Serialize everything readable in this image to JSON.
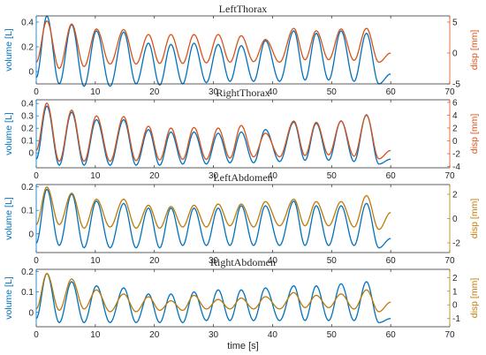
{
  "colors": {
    "left_series": "#0072bd",
    "right_series": "#d95319",
    "right_axis_abdomen": "#bd7b08",
    "text": "#262626",
    "axes": "#262626"
  },
  "chart_data": [
    {
      "type": "line",
      "title": "LeftThorax",
      "xlabel": "",
      "ylabel_left": "volume [L]",
      "ylabel_right": "disp [mm]",
      "xlim": [
        0,
        70
      ],
      "xticks": [
        0,
        10,
        20,
        30,
        40,
        50,
        60,
        70
      ],
      "ylim_left": [
        -0.1,
        0.45
      ],
      "yticks_left": [
        0,
        0.2,
        0.4
      ],
      "ytick_labels_left": [
        "0",
        "0.2",
        "0.4"
      ],
      "ylim_right": [
        -5,
        6
      ],
      "yticks_right": [
        -5,
        0,
        5
      ],
      "ytick_labels_right": [
        "-5",
        "0",
        "5"
      ],
      "peak_times": [
        1.8,
        6,
        10.2,
        14.8,
        19,
        22.8,
        26.7,
        30.8,
        34.7,
        38.8,
        43.6,
        47.4,
        51.6,
        55.9
      ],
      "series": [
        {
          "axis": "left",
          "color": "#0072bd",
          "x": [
            0,
            1.8,
            3.9,
            6,
            8.1,
            10.2,
            12.5,
            14.8,
            16.9,
            19,
            20.9,
            22.8,
            24.8,
            26.7,
            28.8,
            30.8,
            32.8,
            34.7,
            36.8,
            38.8,
            41.2,
            43.6,
            45.5,
            47.4,
            49.5,
            51.6,
            53.8,
            55.9,
            58,
            60
          ],
          "values": [
            -0.05,
            0.45,
            -0.1,
            0.38,
            -0.12,
            0.33,
            -0.12,
            0.32,
            -0.1,
            0.23,
            -0.11,
            0.22,
            -0.1,
            0.23,
            -0.09,
            0.22,
            -0.08,
            0.21,
            -0.08,
            0.25,
            -0.08,
            0.33,
            -0.07,
            0.31,
            -0.07,
            0.33,
            -0.08,
            0.31,
            -0.1,
            -0.02
          ]
        },
        {
          "axis": "right",
          "color": "#d95319",
          "x": [
            0,
            1.8,
            3.9,
            6,
            8.1,
            10.2,
            12.5,
            14.8,
            16.9,
            19,
            20.9,
            22.8,
            24.8,
            26.7,
            28.8,
            30.8,
            32.8,
            34.7,
            36.8,
            38.8,
            41.2,
            43.6,
            45.5,
            47.4,
            49.5,
            51.6,
            53.8,
            55.9,
            58,
            60
          ],
          "values": [
            -1.5,
            5.2,
            -2.5,
            4.7,
            -2.2,
            3.9,
            -1.8,
            3.8,
            -1.8,
            3.0,
            -1.7,
            3.0,
            -1.7,
            3.0,
            -1.6,
            3.0,
            -1.5,
            2.8,
            -1.4,
            2.2,
            -1.5,
            4.0,
            -1.1,
            3.6,
            -1.1,
            3.9,
            -1.2,
            4.0,
            -1.5,
            0
          ]
        }
      ]
    },
    {
      "type": "line",
      "title": "RightThorax",
      "xlabel": "",
      "ylabel_left": "volume [L]",
      "ylabel_right": "disp [mm]",
      "xlim": [
        0,
        70
      ],
      "xticks": [
        0,
        10,
        20,
        30,
        40,
        50,
        60,
        70
      ],
      "ylim_left": [
        -0.12,
        0.43
      ],
      "yticks_left": [
        0,
        0.1,
        0.2,
        0.3,
        0.4
      ],
      "ytick_labels_left": [
        "0",
        "0.1",
        "0.2",
        "0.3",
        "0.4"
      ],
      "ylim_right": [
        -4.2,
        6.4
      ],
      "yticks_right": [
        -4,
        -2,
        0,
        2,
        4,
        6
      ],
      "ytick_labels_right": [
        "-4",
        "-2",
        "0",
        "2",
        "4",
        "6"
      ],
      "peak_times": [
        1.8,
        6,
        10.2,
        14.8,
        19,
        22.8,
        26.7,
        30.8,
        34.7,
        38.8,
        43.6,
        47.4,
        51.6,
        55.9
      ],
      "series": [
        {
          "axis": "left",
          "color": "#0072bd",
          "x": [
            0,
            1.8,
            3.9,
            6,
            8.1,
            10.2,
            12.5,
            14.8,
            16.9,
            19,
            20.9,
            22.8,
            24.8,
            26.7,
            28.8,
            30.8,
            32.8,
            34.7,
            36.8,
            38.8,
            41.2,
            43.6,
            45.5,
            47.4,
            49.5,
            51.6,
            53.8,
            55.9,
            58,
            60
          ],
          "values": [
            -0.05,
            0.38,
            -0.1,
            0.33,
            -0.1,
            0.27,
            -0.1,
            0.27,
            -0.1,
            0.19,
            -0.1,
            0.17,
            -0.09,
            0.17,
            -0.09,
            0.16,
            -0.08,
            0.17,
            -0.08,
            0.19,
            -0.07,
            0.25,
            -0.06,
            0.24,
            -0.06,
            0.26,
            -0.07,
            0.31,
            -0.09,
            -0.05
          ]
        },
        {
          "axis": "right",
          "color": "#d95319",
          "x": [
            0,
            1.8,
            3.9,
            6,
            8.1,
            10.2,
            12.5,
            14.8,
            16.9,
            19,
            20.9,
            22.8,
            24.8,
            26.7,
            28.8,
            30.8,
            32.8,
            34.7,
            36.8,
            38.8,
            41.2,
            43.6,
            45.5,
            47.4,
            49.5,
            51.6,
            53.8,
            55.9,
            58,
            60
          ],
          "values": [
            -1.5,
            5.9,
            -3.2,
            4.8,
            -3.2,
            3.9,
            -3.2,
            3.8,
            -3.1,
            2.3,
            -3.0,
            2.0,
            -2.9,
            2.1,
            -2.9,
            2.0,
            -2.7,
            2.4,
            -2.5,
            1.2,
            -2.5,
            3.1,
            -2.3,
            2.9,
            -2.2,
            3.1,
            -2.4,
            4.0,
            -2.8,
            -1.5
          ]
        }
      ]
    },
    {
      "type": "line",
      "title": "LeftAbdomen",
      "xlabel": "",
      "ylabel_left": "volume [L]",
      "ylabel_right": "disp [mm]",
      "xlim": [
        0,
        70
      ],
      "xticks": [
        0,
        10,
        20,
        30,
        40,
        50,
        60,
        70
      ],
      "ylim_left": [
        -0.08,
        0.21
      ],
      "yticks_left": [
        0,
        0.1,
        0.2
      ],
      "ytick_labels_left": [
        "0",
        "0.1",
        "0.2"
      ],
      "ylim_right": [
        -2.8,
        2.8
      ],
      "yticks_right": [
        -2,
        0,
        2
      ],
      "ytick_labels_right": [
        "-2",
        "0",
        "2"
      ],
      "peak_times": [
        1.8,
        6,
        10.2,
        14.8,
        19,
        22.8,
        26.7,
        30.8,
        34.7,
        38.8,
        43.6,
        47.4,
        51.6,
        55.9
      ],
      "series": [
        {
          "axis": "left",
          "color": "#0072bd",
          "x": [
            0,
            1.8,
            3.9,
            6,
            8.1,
            10.2,
            12.5,
            14.8,
            16.9,
            19,
            20.9,
            22.8,
            24.8,
            26.7,
            28.8,
            30.8,
            32.8,
            34.7,
            36.8,
            38.8,
            41.2,
            43.6,
            45.5,
            47.4,
            49.5,
            51.6,
            53.8,
            55.9,
            58,
            60
          ],
          "values": [
            -0.04,
            0.19,
            -0.05,
            0.17,
            -0.06,
            0.14,
            -0.06,
            0.13,
            -0.06,
            0.11,
            -0.06,
            0.11,
            -0.05,
            0.11,
            -0.05,
            0.11,
            -0.05,
            0.12,
            -0.05,
            0.12,
            -0.05,
            0.14,
            -0.05,
            0.12,
            -0.05,
            0.12,
            -0.05,
            0.13,
            -0.06,
            -0.02
          ]
        },
        {
          "axis": "right",
          "color": "#bd7b08",
          "x": [
            0,
            1.8,
            3.9,
            6,
            8.1,
            10.2,
            12.5,
            14.8,
            16.9,
            19,
            20.9,
            22.8,
            24.8,
            26.7,
            28.8,
            30.8,
            32.8,
            34.7,
            36.8,
            38.8,
            41.2,
            43.6,
            45.5,
            47.4,
            49.5,
            51.6,
            53.8,
            55.9,
            58,
            60
          ],
          "values": [
            -0.5,
            2.6,
            -0.5,
            2.1,
            -0.8,
            1.6,
            -0.7,
            1.6,
            -0.8,
            1.1,
            -0.8,
            1.0,
            -0.7,
            1.1,
            -0.7,
            1.2,
            -0.6,
            1.2,
            -0.7,
            1.4,
            -0.6,
            1.6,
            -0.6,
            1.4,
            -0.6,
            1.4,
            -0.7,
            1.9,
            -0.9,
            0.5
          ]
        }
      ]
    },
    {
      "type": "line",
      "title": "RightAbdomen",
      "xlabel": "time [s]",
      "ylabel_left": "volume [L]",
      "ylabel_right": "disp [mm]",
      "xlim": [
        0,
        70
      ],
      "xticks": [
        0,
        10,
        20,
        30,
        40,
        50,
        60,
        70
      ],
      "ylim_left": [
        -0.07,
        0.21
      ],
      "yticks_left": [
        0,
        0.1,
        0.2
      ],
      "ytick_labels_left": [
        "0",
        "0.1",
        "0.2"
      ],
      "ylim_right": [
        -1.6,
        2.6
      ],
      "yticks_right": [
        -1,
        0,
        1,
        2
      ],
      "ytick_labels_right": [
        "-1",
        "0",
        "1",
        "2"
      ],
      "peak_times": [
        1.8,
        6,
        10.2,
        14.8,
        19,
        22.8,
        26.7,
        30.8,
        34.7,
        38.8,
        43.6,
        47.4,
        51.6,
        55.9
      ],
      "series": [
        {
          "axis": "left",
          "color": "#0072bd",
          "x": [
            0,
            1.8,
            3.9,
            6,
            8.1,
            10.2,
            12.5,
            14.8,
            16.9,
            19,
            20.9,
            22.8,
            24.8,
            26.7,
            28.8,
            30.8,
            32.8,
            34.7,
            36.8,
            38.8,
            41.2,
            43.6,
            45.5,
            47.4,
            49.5,
            51.6,
            53.8,
            55.9,
            58,
            60
          ],
          "values": [
            -0.03,
            0.19,
            -0.05,
            0.15,
            -0.05,
            0.13,
            -0.05,
            0.12,
            -0.05,
            0.09,
            -0.05,
            0.09,
            -0.05,
            0.1,
            -0.04,
            0.11,
            -0.04,
            0.11,
            -0.04,
            0.12,
            -0.04,
            0.13,
            -0.04,
            0.13,
            -0.04,
            0.14,
            -0.04,
            0.15,
            -0.05,
            -0.03
          ]
        },
        {
          "axis": "right",
          "color": "#bd7b08",
          "x": [
            0,
            1.8,
            3.9,
            6,
            8.1,
            10.2,
            12.5,
            14.8,
            16.9,
            19,
            20.9,
            22.8,
            24.8,
            26.7,
            28.8,
            30.8,
            32.8,
            34.7,
            36.8,
            38.8,
            41.2,
            43.6,
            45.5,
            47.4,
            49.5,
            51.6,
            53.8,
            55.9,
            58,
            60
          ],
          "values": [
            -0.3,
            2.3,
            -0.4,
            1.9,
            -0.3,
            1.1,
            -0.5,
            0.8,
            -0.5,
            0.6,
            -0.4,
            0.3,
            -0.4,
            0.7,
            -0.3,
            0.4,
            -0.3,
            0.5,
            -0.3,
            0.6,
            -0.3,
            0.9,
            -0.2,
            0.7,
            -0.2,
            0.8,
            -0.3,
            1.1,
            -0.5,
            0.2
          ]
        }
      ]
    }
  ]
}
